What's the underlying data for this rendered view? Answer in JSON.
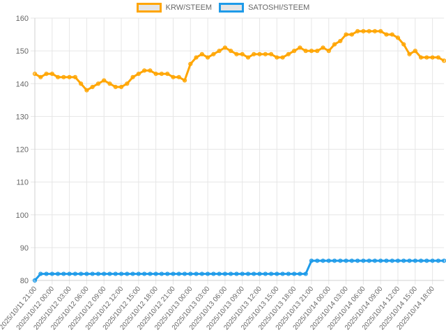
{
  "chart_data": {
    "type": "line",
    "title": "",
    "xlabel": "",
    "ylabel": "",
    "ylim": [
      80,
      160
    ],
    "yticks": [
      "80",
      "90",
      "100",
      "110",
      "120",
      "130",
      "140",
      "150",
      "160"
    ],
    "grid": true,
    "legend_position": "top",
    "x_tick_labels": [
      "2025/10/11 21:00",
      "2025/10/12 00:00",
      "2025/10/12 03:00",
      "2025/10/12 06:00",
      "2025/10/12 09:00",
      "2025/10/12 12:00",
      "2025/10/12 15:00",
      "2025/10/12 18:00",
      "2025/10/12 21:00",
      "2025/10/13 00:00",
      "2025/10/13 03:00",
      "2025/10/13 06:00",
      "2025/10/13 09:00",
      "2025/10/13 12:00",
      "2025/10/13 15:00",
      "2025/10/13 18:00",
      "2025/10/13 21:00",
      "2025/10/14 00:00",
      "2025/10/14 03:00",
      "2025/10/14 06:00",
      "2025/10/14 09:00",
      "2025/10/14 12:00",
      "2025/10/14 15:00",
      "2025/10/14 18:00"
    ],
    "x_start": "2025/10/11 21:00",
    "x_interval": "1 hour",
    "series": [
      {
        "name": "KRW/STEEM",
        "color": "#FFA500",
        "values": [
          143,
          142,
          143,
          143,
          142,
          142,
          142,
          142,
          140,
          138,
          139,
          140,
          141,
          140,
          139,
          139,
          140,
          142,
          143,
          144,
          144,
          143,
          143,
          143,
          142,
          142,
          141,
          146,
          148,
          149,
          148,
          149,
          150,
          151,
          150,
          149,
          149,
          148,
          149,
          149,
          149,
          149,
          148,
          148,
          149,
          150,
          151,
          150,
          150,
          150,
          151,
          150,
          152,
          153,
          155,
          155,
          156,
          156,
          156,
          156,
          156,
          155,
          155,
          154,
          152,
          149,
          150,
          148,
          148,
          148,
          148,
          147
        ]
      },
      {
        "name": "SATOSHI/STEEM",
        "color": "#1E9BE9",
        "values": [
          80,
          82,
          82,
          82,
          82,
          82,
          82,
          82,
          82,
          82,
          82,
          82,
          82,
          82,
          82,
          82,
          82,
          82,
          82,
          82,
          82,
          82,
          82,
          82,
          82,
          82,
          82,
          82,
          82,
          82,
          82,
          82,
          82,
          82,
          82,
          82,
          82,
          82,
          82,
          82,
          82,
          82,
          82,
          82,
          82,
          82,
          82,
          82,
          86,
          86,
          86,
          86,
          86,
          86,
          86,
          86,
          86,
          86,
          86,
          86,
          86,
          86,
          86,
          86,
          86,
          86,
          86,
          86,
          86,
          86,
          86,
          86
        ]
      }
    ]
  }
}
